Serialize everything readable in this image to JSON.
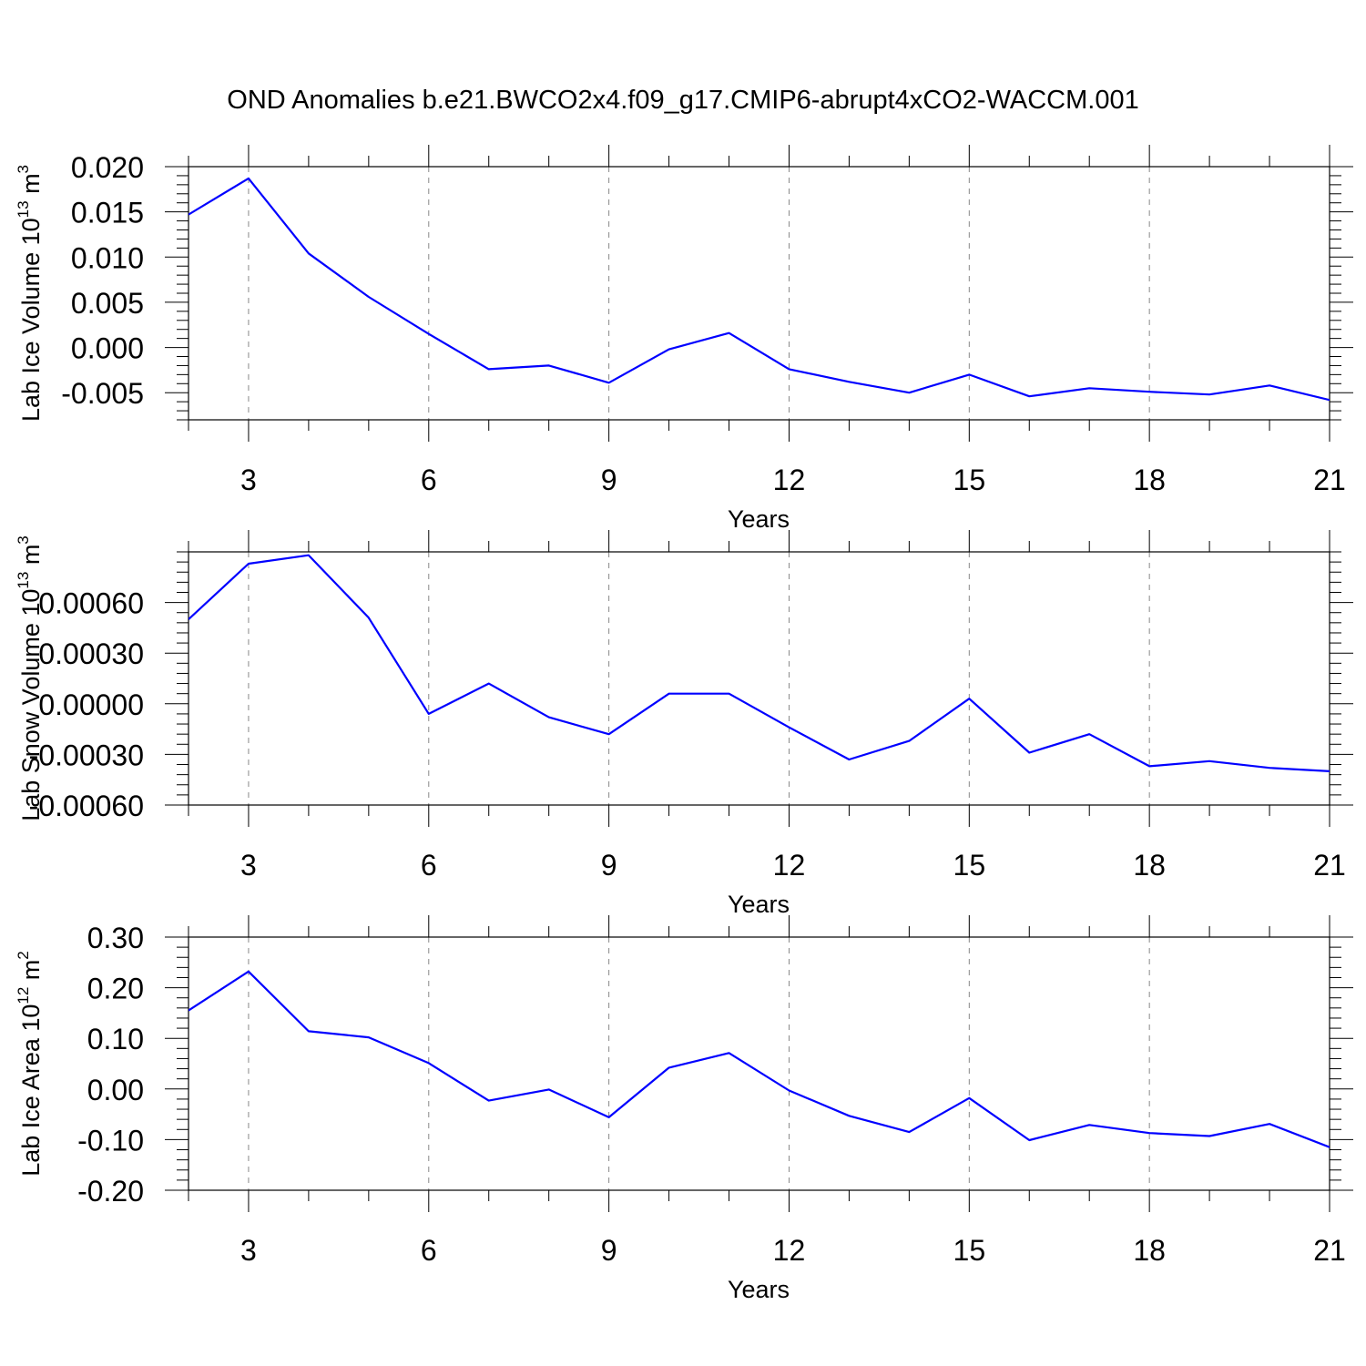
{
  "figure_title": "OND Anomalies b.e21.BWCO2x4.f09_g17.CMIP6-abrupt4xCO2-WACCM.001",
  "series_color": "#0000ff",
  "chart_data": [
    {
      "type": "line",
      "ylabel": {
        "text": "Lab Ice Volume 10",
        "exp": "13",
        "unit": " m",
        "unit_exp": "3"
      },
      "xlabel": "Years",
      "xlim": [
        2,
        21
      ],
      "ylim": [
        -0.008,
        0.02
      ],
      "x_ticks": [
        "3",
        "6",
        "9",
        "12",
        "15",
        "18",
        "21"
      ],
      "y_ticks": [
        "0.020",
        "0.015",
        "0.010",
        "0.005",
        "0.000",
        "-0.005"
      ],
      "grid": "dashed vertical at major x ticks",
      "x": [
        2,
        3,
        4,
        5,
        6,
        7,
        8,
        9,
        10,
        11,
        12,
        13,
        14,
        15,
        16,
        17,
        18,
        19,
        20,
        21
      ],
      "values": [
        0.0147,
        0.0187,
        0.0104,
        0.0056,
        0.0015,
        -0.0024,
        -0.002,
        -0.0039,
        -0.0002,
        0.0016,
        -0.0024,
        -0.0038,
        -0.005,
        -0.003,
        -0.0054,
        -0.0045,
        -0.0049,
        -0.0052,
        -0.0042,
        -0.0058
      ]
    },
    {
      "type": "line",
      "ylabel": {
        "text": "Lab Snow Volume 10",
        "exp": "13",
        "unit": " m",
        "unit_exp": "3"
      },
      "xlabel": "Years",
      "xlim": [
        2,
        21
      ],
      "ylim": [
        -0.0006,
        0.0009
      ],
      "x_ticks": [
        "3",
        "6",
        "9",
        "12",
        "15",
        "18",
        "21"
      ],
      "y_ticks": [
        "0.00060",
        "0.00030",
        "0.00000",
        "-0.00030",
        "-0.00060"
      ],
      "grid": "dashed vertical at major x ticks",
      "x": [
        2,
        3,
        4,
        5,
        6,
        7,
        8,
        9,
        10,
        11,
        12,
        13,
        14,
        15,
        16,
        17,
        18,
        19,
        20,
        21
      ],
      "values": [
        0.0005,
        0.00083,
        0.00088,
        0.00051,
        -6e-05,
        0.00012,
        -8e-05,
        -0.00018,
        6e-05,
        6e-05,
        -0.00014,
        -0.00033,
        -0.00022,
        3e-05,
        -0.00029,
        -0.00018,
        -0.00037,
        -0.00034,
        -0.00038,
        -0.0004
      ]
    },
    {
      "type": "line",
      "ylabel": {
        "text": "Lab Ice Area 10",
        "exp": "12",
        "unit": " m",
        "unit_exp": "2"
      },
      "xlabel": "Years",
      "xlim": [
        2,
        21
      ],
      "ylim": [
        -0.2,
        0.3
      ],
      "x_ticks": [
        "3",
        "6",
        "9",
        "12",
        "15",
        "18",
        "21"
      ],
      "y_ticks": [
        "0.30",
        "0.20",
        "0.10",
        "0.00",
        "-0.10",
        "-0.20"
      ],
      "grid": "dashed vertical at major x ticks",
      "x": [
        2,
        3,
        4,
        5,
        6,
        7,
        8,
        9,
        10,
        11,
        12,
        13,
        14,
        15,
        16,
        17,
        18,
        19,
        20,
        21
      ],
      "values": [
        0.155,
        0.232,
        0.114,
        0.102,
        0.051,
        -0.023,
        -0.001,
        -0.056,
        0.042,
        0.071,
        -0.003,
        -0.053,
        -0.085,
        -0.018,
        -0.101,
        -0.071,
        -0.087,
        -0.093,
        -0.069,
        -0.115
      ]
    }
  ]
}
